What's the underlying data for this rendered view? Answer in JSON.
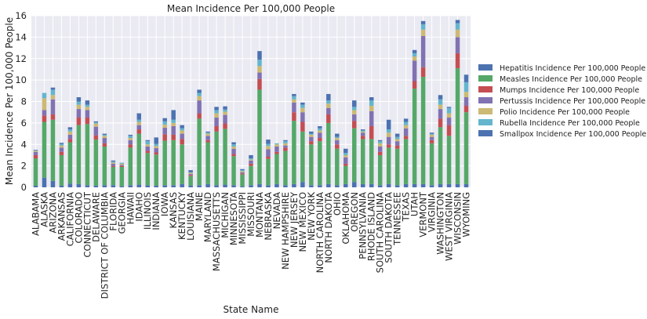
{
  "chart_data": {
    "type": "bar",
    "stacked": true,
    "title": "Mean Incidence Per 100,000 People",
    "xlabel": "State Name",
    "ylabel": "Mean Incidence Per 100,000 People",
    "ylim": [
      0,
      16
    ],
    "yticks": [
      0,
      2,
      4,
      6,
      8,
      10,
      12,
      14,
      16
    ],
    "grid": true,
    "legend_position": "right",
    "categories": [
      "ALABAMA",
      "ALASKA",
      "ARIZONA",
      "ARKANSAS",
      "CALIFORNIA",
      "COLORADO",
      "CONNECTICUT",
      "DELAWARE",
      "DISTRICT OF COLUMBIA",
      "FLORIDA",
      "GEORGIA",
      "HAWAII",
      "IDAHO",
      "ILLINOIS",
      "INDIANA",
      "IOWA",
      "KANSAS",
      "KENTUCKY",
      "LOUISIANA",
      "MAINE",
      "MARYLAND",
      "MASSACHUSETTS",
      "MICHIGAN",
      "MINNESOTA",
      "MISSISSIPPI",
      "MISSOURI",
      "MONTANA",
      "NEBRASKA",
      "NEVADA",
      "NEW HAMPSHIRE",
      "NEW JERSEY",
      "NEW MEXICO",
      "NEW YORK",
      "NORTH CAROLINA",
      "NORTH DAKOTA",
      "OHIO",
      "OKLAHOMA",
      "OREGON",
      "PENNSYLVANIA",
      "RHODE ISLAND",
      "SOUTH CAROLINA",
      "SOUTH DAKOTA",
      "TENNESSEE",
      "TEXAS",
      "UTAH",
      "VERMONT",
      "VIRGINIA",
      "WASHINGTON",
      "WEST VIRGINIA",
      "WISCONSIN",
      "WYOMING"
    ],
    "series": [
      {
        "name": "Hepatitis Incidence Per 100,000 People",
        "color": "#4c72b0",
        "values": [
          0.15,
          0.9,
          0.6,
          0.15,
          0.35,
          0.3,
          0.2,
          0.15,
          0.2,
          0.2,
          0.1,
          0.2,
          0.25,
          0.2,
          0.15,
          0.2,
          0.2,
          0.3,
          0.15,
          0.2,
          0.3,
          0.2,
          0.25,
          0.2,
          0.1,
          0.2,
          0.3,
          0.2,
          0.3,
          0.2,
          0.3,
          0.5,
          0.2,
          0.2,
          0.3,
          0.2,
          0.3,
          0.5,
          0.3,
          0.3,
          0.2,
          0.3,
          0.2,
          0.3,
          0.3,
          0.3,
          0.2,
          0.3,
          0.3,
          0.3,
          0.3
        ]
      },
      {
        "name": "Measles Incidence Per 100,000 People",
        "color": "#55a868",
        "values": [
          2.55,
          5.2,
          5.7,
          2.85,
          3.85,
          5.5,
          5.7,
          4.3,
          3.6,
          1.7,
          1.8,
          3.5,
          4.75,
          3.0,
          2.9,
          4.15,
          4.2,
          3.7,
          0.9,
          6.2,
          3.9,
          5.0,
          5.2,
          2.7,
          1.1,
          1.8,
          8.8,
          2.45,
          2.8,
          3.2,
          5.9,
          4.7,
          3.8,
          4.1,
          5.7,
          3.4,
          1.7,
          5.0,
          4.2,
          4.2,
          2.8,
          3.4,
          3.4,
          4.2,
          8.9,
          10.0,
          3.9,
          5.3,
          4.5,
          10.8,
          6.7
        ]
      },
      {
        "name": "Mumps Incidence Per 100,000 People",
        "color": "#c44e52",
        "values": [
          0.3,
          0.6,
          0.5,
          0.3,
          0.3,
          0.7,
          0.6,
          0.4,
          0.3,
          0.1,
          0.1,
          0.3,
          0.4,
          0.2,
          0.2,
          0.6,
          0.5,
          0.5,
          0.1,
          0.5,
          0.2,
          0.5,
          0.5,
          0.2,
          0.1,
          0.2,
          1.0,
          0.2,
          0.2,
          0.3,
          0.8,
          0.9,
          0.3,
          0.3,
          0.8,
          0.4,
          0.2,
          0.7,
          0.3,
          1.2,
          0.3,
          0.3,
          0.3,
          0.3,
          0.7,
          0.9,
          0.3,
          0.8,
          1.0,
          1.4,
          0.6
        ]
      },
      {
        "name": "Pertussis Incidence Per 100,000 People",
        "color": "#8172b2",
        "values": [
          0.3,
          0.5,
          1.4,
          0.4,
          0.4,
          0.8,
          0.7,
          0.8,
          0.5,
          0.2,
          0.1,
          0.4,
          0.4,
          0.4,
          0.4,
          0.6,
          0.8,
          0.5,
          0.1,
          1.2,
          0.4,
          0.8,
          0.8,
          0.5,
          0.1,
          0.3,
          0.6,
          0.7,
          0.5,
          0.2,
          0.9,
          0.9,
          0.4,
          0.5,
          0.6,
          0.4,
          0.6,
          0.6,
          0.3,
          1.4,
          0.5,
          0.7,
          0.4,
          0.7,
          1.9,
          2.9,
          0.3,
          0.9,
          0.7,
          1.5,
          0.8
        ]
      },
      {
        "name": "Polio Incidence Per 100,000 People",
        "color": "#ccb974",
        "values": [
          0.1,
          1.1,
          0.4,
          0.2,
          0.3,
          0.4,
          0.3,
          0.3,
          0.2,
          0.1,
          0.1,
          0.2,
          0.3,
          0.2,
          0.2,
          0.3,
          0.3,
          0.3,
          0.1,
          0.4,
          0.2,
          0.4,
          0.3,
          0.2,
          0.1,
          0.1,
          0.6,
          0.3,
          0.2,
          0.2,
          0.3,
          0.4,
          0.2,
          0.2,
          0.4,
          0.2,
          0.2,
          0.4,
          0.1,
          0.5,
          0.3,
          0.4,
          0.2,
          0.3,
          0.4,
          0.6,
          0.2,
          0.4,
          0.4,
          0.7,
          0.5
        ]
      },
      {
        "name": "Rubella Incidence Per 100,000 People",
        "color": "#64b5cd",
        "values": [
          0.05,
          0.5,
          0.5,
          0.15,
          0.2,
          0.3,
          0.2,
          0.1,
          0.1,
          0.1,
          0.1,
          0.2,
          0.2,
          0.3,
          0.2,
          0.3,
          0.3,
          0.2,
          0.05,
          0.3,
          0.1,
          0.3,
          0.2,
          0.2,
          0.1,
          0.1,
          0.6,
          0.2,
          0.1,
          0.2,
          0.3,
          0.3,
          0.1,
          0.2,
          0.3,
          0.1,
          0.2,
          0.3,
          0.1,
          0.5,
          0.2,
          0.3,
          0.2,
          0.3,
          0.3,
          0.5,
          0.1,
          0.5,
          0.5,
          0.6,
          0.9
        ]
      },
      {
        "name": "Smallpox Incidence Per 100,000 People",
        "color": "#4c72b0",
        "values": [
          0.05,
          0.0,
          0.2,
          0.1,
          0.2,
          0.4,
          0.4,
          0.1,
          0.1,
          0.1,
          0.0,
          0.1,
          0.6,
          0.1,
          0.6,
          0.3,
          0.9,
          0.3,
          0.2,
          0.3,
          0.1,
          0.3,
          0.3,
          0.2,
          0.1,
          0.3,
          0.8,
          0.4,
          0.0,
          0.1,
          0.2,
          0.2,
          0.2,
          0.2,
          0.6,
          0.3,
          0.4,
          0.6,
          0.1,
          0.3,
          0.1,
          0.9,
          0.3,
          0.3,
          0.3,
          0.3,
          0.1,
          0.4,
          0.1,
          0.3,
          0.7
        ]
      }
    ]
  }
}
